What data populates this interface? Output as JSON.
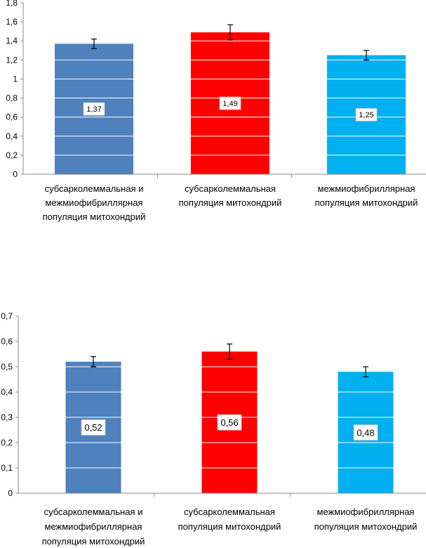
{
  "colors": {
    "series": [
      "#4f81bd",
      "#ff0000",
      "#00b0f0"
    ],
    "axis": "#888888",
    "gridline": "#ffffff",
    "text": "#000000"
  },
  "chart_data": [
    {
      "type": "bar",
      "categories": [
        [
          "субсарколеммальная и",
          "межмиофибриллярная",
          "популяция митохондрий"
        ],
        [
          "субсарколеммальная",
          "популяция митохондрий"
        ],
        [
          "межмиофибриллярная",
          "популяция митохондрий"
        ]
      ],
      "values": [
        1.37,
        1.49,
        1.25
      ],
      "error": [
        0.05,
        0.08,
        0.05
      ],
      "data_labels": [
        "1,37",
        "1,49",
        "1,25"
      ],
      "ylim": [
        0,
        1.8
      ],
      "yticks": [
        0,
        0.2,
        0.4,
        0.6,
        0.8,
        1,
        1.2,
        1.4,
        1.6,
        1.8
      ],
      "ytick_labels": [
        "0",
        "0,2",
        "0,4",
        "0,6",
        "0,8",
        "1",
        "1,2",
        "1,4",
        "1,6",
        "1,8"
      ],
      "grid": "white gridlines over bars",
      "legend": "none"
    },
    {
      "type": "bar",
      "categories": [
        [
          "субсарколеммальная и",
          "межмиофибриллярная",
          "популяция митохондрий"
        ],
        [
          "субсарколеммальная",
          "популяция митохондрий"
        ],
        [
          "межмиофибриллярная",
          "популяция митохондрий"
        ]
      ],
      "values": [
        0.52,
        0.56,
        0.48
      ],
      "error": [
        0.02,
        0.03,
        0.02
      ],
      "data_labels": [
        "0,52",
        "0,56",
        "0,48"
      ],
      "ylim": [
        0,
        0.7
      ],
      "yticks": [
        0,
        0.1,
        0.2,
        0.3,
        0.4,
        0.5,
        0.6,
        0.7
      ],
      "ytick_labels": [
        "0",
        "0,1",
        "0,2",
        "0,3",
        "0,4",
        "0,5",
        "0,6",
        "0,7"
      ],
      "grid": "white gridlines over bars",
      "legend": "none"
    }
  ]
}
